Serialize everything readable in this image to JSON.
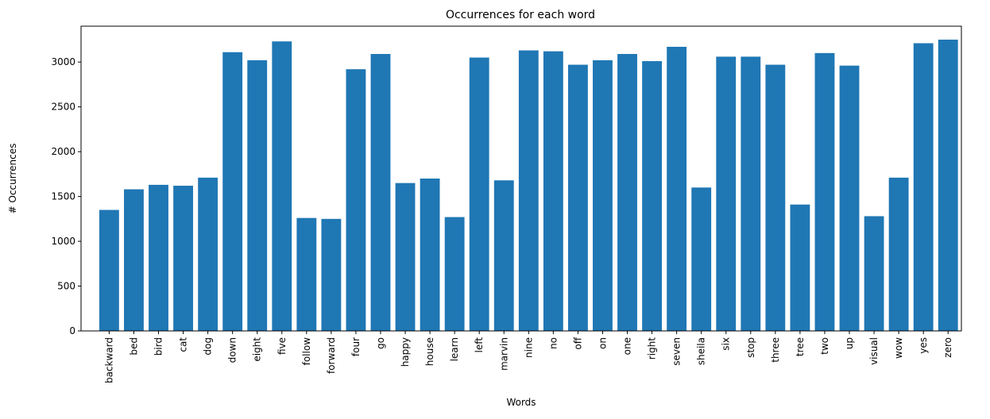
{
  "chart_data": {
    "type": "bar",
    "title": "Occurrences for each word",
    "xlabel": "Words",
    "ylabel": "# Occurrences",
    "ylim": [
      0,
      3400
    ],
    "yticks": [
      0,
      500,
      1000,
      1500,
      2000,
      2500,
      3000
    ],
    "grid": false,
    "bar_color": "#1f77b4",
    "categories": [
      "backward",
      "bed",
      "bird",
      "cat",
      "dog",
      "down",
      "eight",
      "five",
      "follow",
      "forward",
      "four",
      "go",
      "happy",
      "house",
      "learn",
      "left",
      "marvin",
      "nine",
      "no",
      "off",
      "on",
      "one",
      "right",
      "seven",
      "sheila",
      "six",
      "stop",
      "three",
      "tree",
      "two",
      "up",
      "visual",
      "wow",
      "yes",
      "zero"
    ],
    "values": [
      1350,
      1580,
      1630,
      1620,
      1710,
      3110,
      3020,
      3230,
      1260,
      1250,
      2920,
      3090,
      1650,
      1700,
      1270,
      3050,
      1680,
      3130,
      3120,
      2970,
      3020,
      3090,
      3010,
      3170,
      1600,
      3060,
      3060,
      2970,
      1410,
      3100,
      2960,
      1280,
      1710,
      3210,
      3250
    ]
  }
}
